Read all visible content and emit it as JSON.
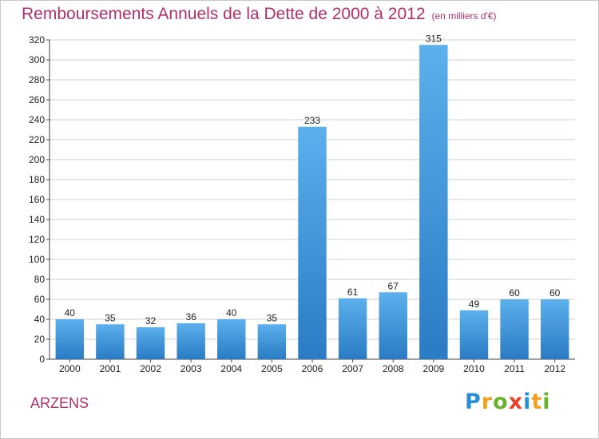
{
  "header": {
    "title": "Remboursements Annuels de la Dette de 2000 à 2012",
    "unit": "(en milliers d'€)"
  },
  "footer": {
    "place": "ARZENS",
    "logo_letters": [
      {
        "char": "P",
        "color": "#2a8fd6"
      },
      {
        "char": "r",
        "color": "#f5a020"
      },
      {
        "char": "o",
        "color": "#6ab42d"
      },
      {
        "char": "x",
        "color": "#e8402a"
      },
      {
        "char": "i",
        "color": "#2a8fd6"
      },
      {
        "char": "t",
        "color": "#f5a020"
      },
      {
        "char": "i",
        "color": "#6ab42d"
      }
    ]
  },
  "colors": {
    "title": "#b0306a",
    "bar_top": "#5cb0ec",
    "bar_bottom": "#2a7bc4",
    "grid": "#d0d0d0"
  },
  "chart_data": {
    "type": "bar",
    "title": "Remboursements Annuels de la Dette de 2000 à 2012",
    "categories": [
      "2000",
      "2001",
      "2002",
      "2003",
      "2004",
      "2005",
      "2006",
      "2007",
      "2008",
      "2009",
      "2010",
      "2011",
      "2012"
    ],
    "values": [
      40,
      35,
      32,
      36,
      40,
      35,
      233,
      61,
      67,
      315,
      49,
      60,
      60
    ],
    "ylim": [
      0,
      320
    ],
    "yticks": [
      0,
      20,
      40,
      60,
      80,
      100,
      120,
      140,
      160,
      180,
      200,
      220,
      240,
      260,
      280,
      300,
      320
    ],
    "grid": true,
    "legend": "none"
  }
}
